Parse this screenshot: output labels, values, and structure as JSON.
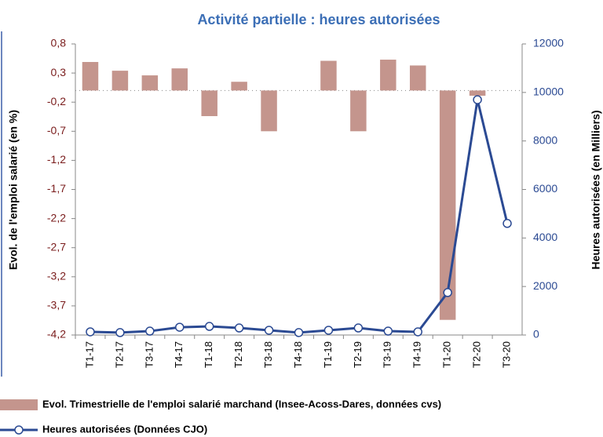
{
  "chart_data": {
    "type": "bar-line",
    "title": "Activité partielle : heures autorisées",
    "y_label": "Evol. de l'emploi salarié (en %)",
    "y2_label": "Heures autorisées (en Milliers)",
    "categories": [
      "T1-17",
      "T2-17",
      "T3-17",
      "T4-17",
      "T1-18",
      "T2-18",
      "T3-18",
      "T4-18",
      "T1-19",
      "T2-19",
      "T3-19",
      "T4-19",
      "T1-20",
      "T2-20",
      "T3-20"
    ],
    "series": [
      {
        "name": "Evol. Trimestrielle de l'emploi salarié marchand (Insee-Acoss-Dares, données cvs)",
        "type": "bar",
        "color": "#c4958d",
        "values": [
          0.49,
          0.34,
          0.26,
          0.38,
          -0.44,
          0.15,
          -0.7,
          0,
          0.51,
          -0.7,
          0.53,
          0.43,
          -3.94,
          -0.09,
          0
        ]
      },
      {
        "name": "Heures autorisées (Données CJO)",
        "type": "line",
        "axis": "y2",
        "color": "#2b4a93",
        "values": [
          130,
          100,
          160,
          320,
          355,
          290,
          195,
          100,
          195,
          290,
          160,
          130,
          1750,
          9700,
          4600
        ]
      }
    ],
    "ylim": [
      -4.2,
      0.8
    ],
    "yticks": [
      {
        "value": -4.2,
        "label": "-4,2"
      },
      {
        "value": -3.7,
        "label": "-3,7"
      },
      {
        "value": -3.2,
        "label": "-3,2"
      },
      {
        "value": -2.7,
        "label": "-2,7"
      },
      {
        "value": -2.2,
        "label": "-2,2"
      },
      {
        "value": -1.7,
        "label": "-1,7"
      },
      {
        "value": -1.2,
        "label": "-1,2"
      },
      {
        "value": -0.7,
        "label": "-0,7"
      },
      {
        "value": -0.2,
        "label": "-0,2"
      },
      {
        "value": 0.3,
        "label": "0,3"
      },
      {
        "value": 0.8,
        "label": "0,8"
      }
    ],
    "y2lim": [
      0,
      12000
    ],
    "y2ticks": [
      0,
      2000,
      4000,
      6000,
      8000,
      10000,
      12000
    ]
  }
}
